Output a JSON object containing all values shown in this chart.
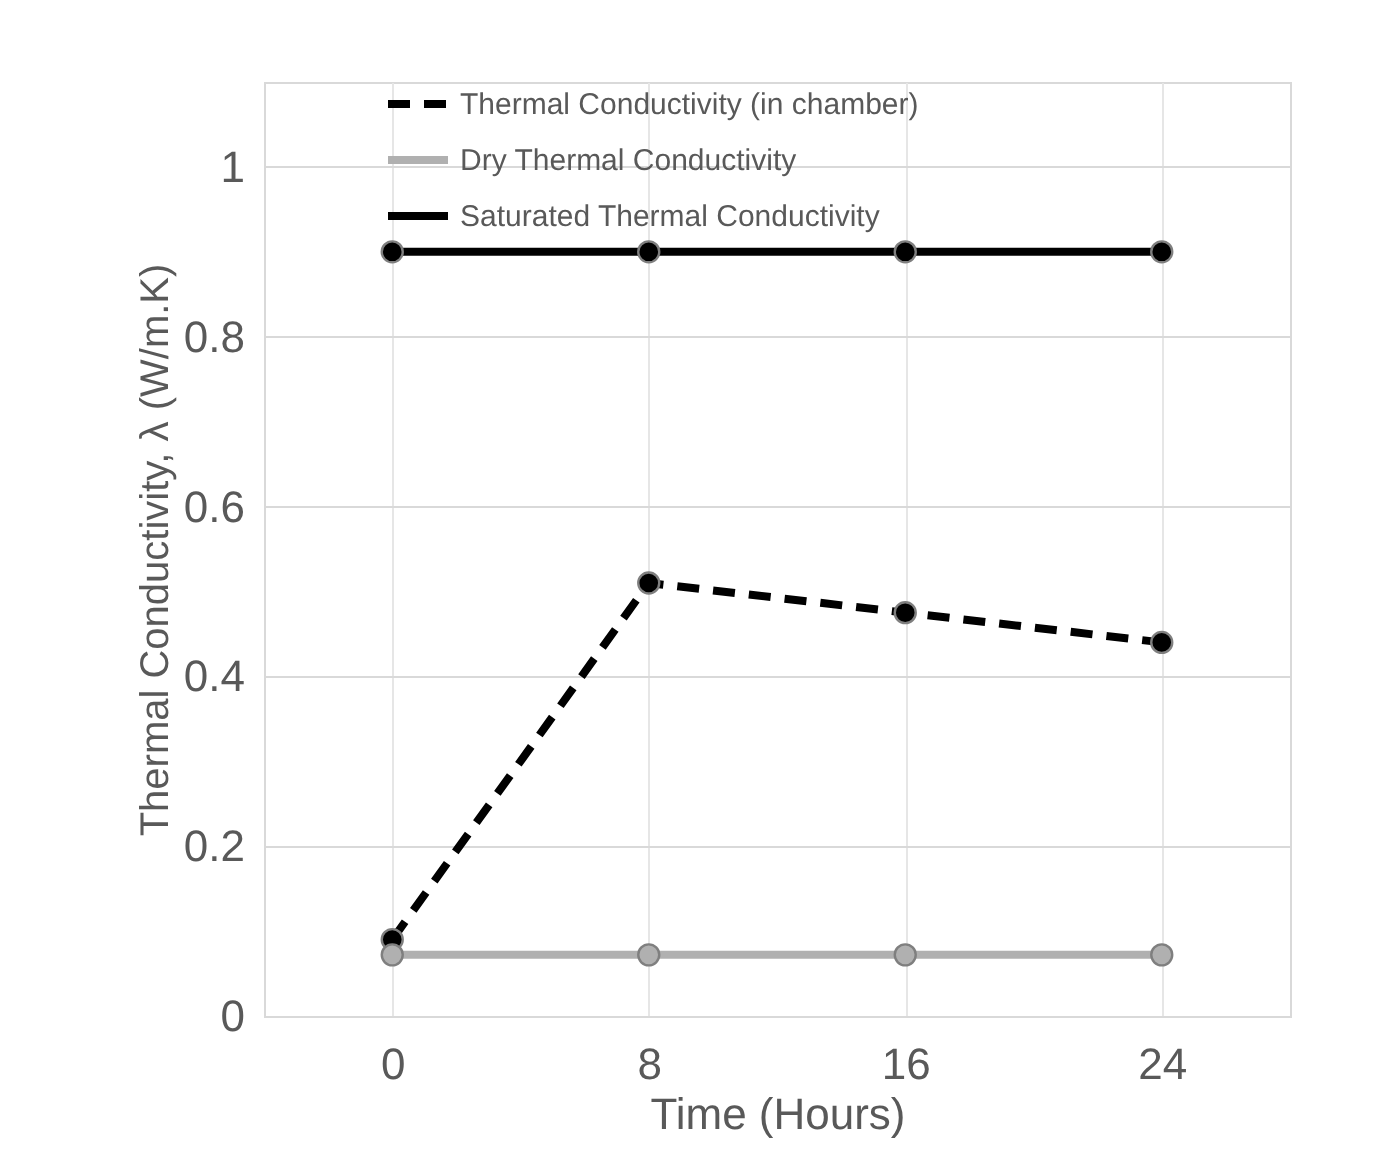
{
  "chart_data": {
    "type": "line",
    "xlabel": "Time (Hours)",
    "ylabel": "Thermal Conductivity, λ (W/m.K)",
    "categories": [
      "0",
      "8",
      "16",
      "24"
    ],
    "series": [
      {
        "name": "Thermal Conductivity (in chamber)",
        "color": "#000000",
        "line_style": "dashed",
        "values": [
          0.09,
          0.51,
          0.475,
          0.44
        ]
      },
      {
        "name": "Dry Thermal Conductivity",
        "color": "#b0b0b0",
        "line_style": "solid",
        "values": [
          0.072,
          0.072,
          0.072,
          0.072
        ]
      },
      {
        "name": "Saturated Thermal Conductivity",
        "color": "#000000",
        "line_style": "solid",
        "values": [
          0.9,
          0.9,
          0.9,
          0.9
        ]
      }
    ],
    "ylim": [
      0,
      1.1
    ],
    "yticks": [
      0,
      0.2,
      0.4,
      0.6,
      0.8,
      1
    ],
    "grid": true,
    "legend": "top",
    "marker": "circle"
  }
}
